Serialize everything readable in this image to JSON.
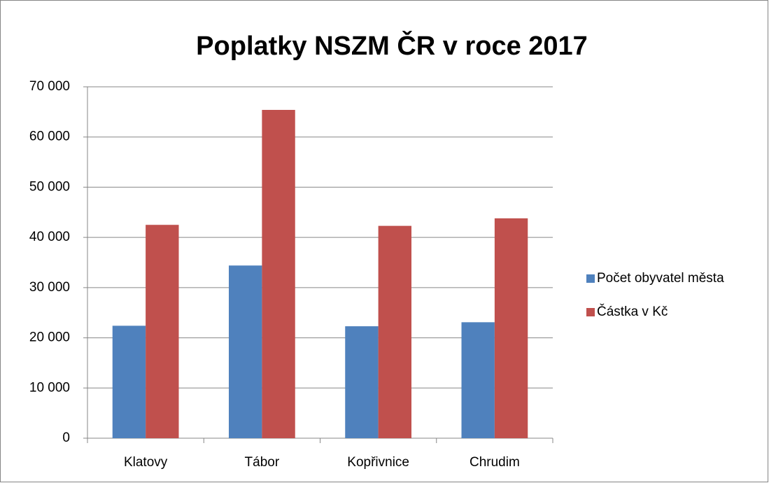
{
  "chart_data": {
    "type": "bar",
    "title": "Poplatky NSZM ČR v roce 2017",
    "categories": [
      "Klatovy",
      "Tábor",
      "Kopřivnice",
      "Chrudim"
    ],
    "series": [
      {
        "name": "Počet obyvatel města",
        "color": "#4f81bd",
        "values": [
          22400,
          34400,
          22300,
          23100
        ]
      },
      {
        "name": "Částka v Kč",
        "color": "#c0504d",
        "values": [
          42500,
          65400,
          42300,
          43800
        ]
      }
    ],
    "ylim": [
      0,
      70000
    ],
    "yticks": [
      0,
      {
        "value": 10000,
        "label": "10 000"
      },
      {
        "value": 20000,
        "label": "20 000"
      },
      {
        "value": 30000,
        "label": "30 000"
      },
      {
        "value": 40000,
        "label": "40 000"
      },
      {
        "value": 50000,
        "label": "50 000"
      },
      {
        "value": 60000,
        "label": "60 000"
      },
      {
        "value": 70000,
        "label": "70 000"
      }
    ],
    "grid": true,
    "legend": "right"
  }
}
